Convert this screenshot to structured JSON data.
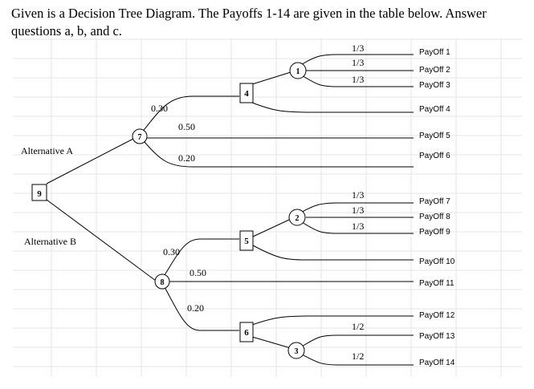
{
  "question_text": "Given is a Decision Tree Diagram. The Payoffs 1-14 are given in the table below. Answer questions a, b, and c.",
  "alternatives": {
    "a": "Alternative A",
    "b": "Alternative B"
  },
  "nodes": {
    "root": "9",
    "chance_7": "7",
    "decision_4": "4",
    "chance_1": "1",
    "chance_8": "8",
    "decision_5": "5",
    "chance_2": "2",
    "decision_6": "6",
    "chance_3": "3"
  },
  "probabilities": {
    "n7_upper": "0.30",
    "n7_middle": "0.50",
    "n7_lower": "0.20",
    "n1_a": "1/3",
    "n1_b": "1/3",
    "n1_c": "1/3",
    "n8_upper": "0.30",
    "n8_middle": "0.50",
    "n8_lower": "0.20",
    "n2_a": "1/3",
    "n2_b": "1/3",
    "n2_c": "1/3",
    "n3_a": "1/2",
    "n3_b": "1/2"
  },
  "payoffs": [
    "PayOff 1",
    "PayOff 2",
    "PayOff 3",
    "PayOff 4",
    "PayOff 5",
    "PayOff 6",
    "PayOff 7",
    "PayOff 8",
    "PayOff 9",
    "PayOff 10",
    "PayOff 11",
    "PayOff 12",
    "PayOff 13",
    "PayOff 14"
  ]
}
